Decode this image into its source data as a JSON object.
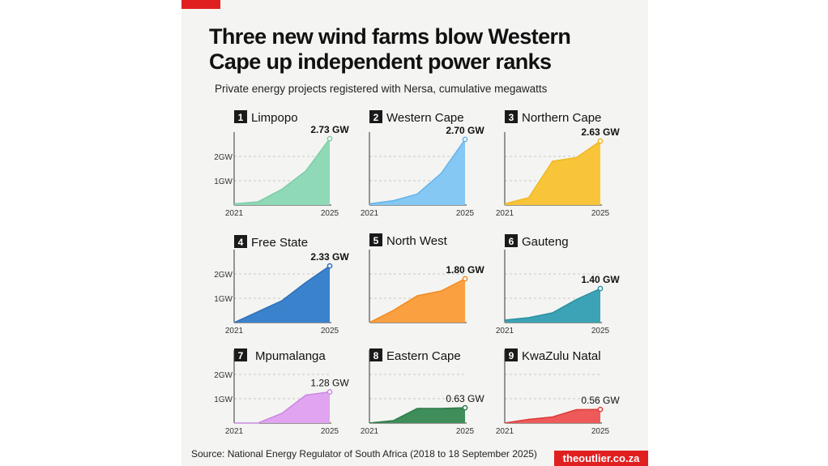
{
  "header": {
    "title_line1": "Three new wind farms blow Western",
    "title_line2": "Cape up independent power ranks",
    "subtitle": "Private energy projects registered with Nersa, cumulative megawatts"
  },
  "footer": {
    "source": "Source:  National Energy Regulator of South Africa (2018 to 18 September 2025)",
    "brand": "theoutlier.co.za"
  },
  "chart_data": [
    {
      "type": "area",
      "rank": "1",
      "title": "Limpopo",
      "color": "#8fd9b6",
      "line_color": "#7ccfa6",
      "x": [
        2021,
        2022,
        2023,
        2024,
        2025
      ],
      "values": [
        0.05,
        0.13,
        0.65,
        1.4,
        2.73
      ],
      "end_label": "2.73 GW",
      "y_ticks": [
        "1GW",
        "2GW"
      ],
      "x_ticks": [
        "2021",
        "2025"
      ],
      "label_bold": true
    },
    {
      "type": "area",
      "rank": "2",
      "title": "Western Cape",
      "color": "#85c8f3",
      "line_color": "#64b3ec",
      "x": [
        2021,
        2022,
        2023,
        2024,
        2025
      ],
      "values": [
        0.05,
        0.18,
        0.45,
        1.3,
        2.7
      ],
      "end_label": "2.70 GW",
      "y_ticks": [],
      "x_ticks": [
        "2021",
        "2025"
      ],
      "label_bold": true
    },
    {
      "type": "area",
      "rank": "3",
      "title": "Northern Cape",
      "color": "#f8c53a",
      "line_color": "#efb820",
      "x": [
        2021,
        2022,
        2023,
        2024,
        2025
      ],
      "values": [
        0.05,
        0.3,
        1.8,
        1.95,
        2.63
      ],
      "end_label": "2.63 GW",
      "y_ticks": [],
      "x_ticks": [
        "2021",
        "2025"
      ],
      "label_bold": true
    },
    {
      "type": "area",
      "rank": "4",
      "title": "Free State",
      "color": "#3b82cc",
      "line_color": "#2f70b8",
      "x": [
        2021,
        2022,
        2023,
        2024,
        2025
      ],
      "values": [
        0.0,
        0.45,
        0.9,
        1.65,
        2.33
      ],
      "end_label": "2.33 GW",
      "y_ticks": [
        "1GW",
        "2GW"
      ],
      "x_ticks": [
        "2021",
        "2025"
      ],
      "label_bold": true
    },
    {
      "type": "area",
      "rank": "5",
      "title": "North West",
      "color": "#fba040",
      "line_color": "#f38a20",
      "x": [
        2021,
        2022,
        2023,
        2024,
        2025
      ],
      "values": [
        0.0,
        0.5,
        1.1,
        1.3,
        1.8
      ],
      "end_label": "1.80 GW",
      "y_ticks": [],
      "x_ticks": [],
      "label_bold": true
    },
    {
      "type": "area",
      "rank": "6",
      "title": "Gauteng",
      "color": "#3ba3b5",
      "line_color": "#2a8fa2",
      "x": [
        2021,
        2022,
        2023,
        2024,
        2025
      ],
      "values": [
        0.1,
        0.2,
        0.4,
        0.95,
        1.4
      ],
      "end_label": "1.40 GW",
      "y_ticks": [],
      "x_ticks": [
        "2021",
        "2025"
      ],
      "label_bold": true
    },
    {
      "type": "area",
      "rank": "7",
      "title": "Mpumalanga",
      "color": "#e0a4f0",
      "line_color": "#c98ae0",
      "x": [
        2021,
        2022,
        2023,
        2024,
        2025
      ],
      "values": [
        0.0,
        0.0,
        0.4,
        1.15,
        1.28
      ],
      "end_label": "1.28 GW",
      "y_ticks": [
        "1GW",
        "2GW"
      ],
      "x_ticks": [
        "2021",
        "2025"
      ],
      "label_bold": false
    },
    {
      "type": "area",
      "rank": "8",
      "title": "Eastern Cape",
      "color": "#3f8e5a",
      "line_color": "#2e7a48",
      "x": [
        2021,
        2022,
        2023,
        2024,
        2025
      ],
      "values": [
        0.0,
        0.1,
        0.6,
        0.6,
        0.63
      ],
      "end_label": "0.63 GW",
      "y_ticks": [],
      "x_ticks": [
        "2021",
        "2025"
      ],
      "label_bold": false
    },
    {
      "type": "area",
      "rank": "9",
      "title": "KwaZulu Natal",
      "color": "#ee5a5a",
      "line_color": "#dd3a3a",
      "x": [
        2021,
        2022,
        2023,
        2024,
        2025
      ],
      "values": [
        0.0,
        0.15,
        0.25,
        0.55,
        0.56
      ],
      "end_label": "0.56 GW",
      "y_ticks": [],
      "x_ticks": [
        "2021",
        "2025"
      ],
      "label_bold": false
    }
  ]
}
